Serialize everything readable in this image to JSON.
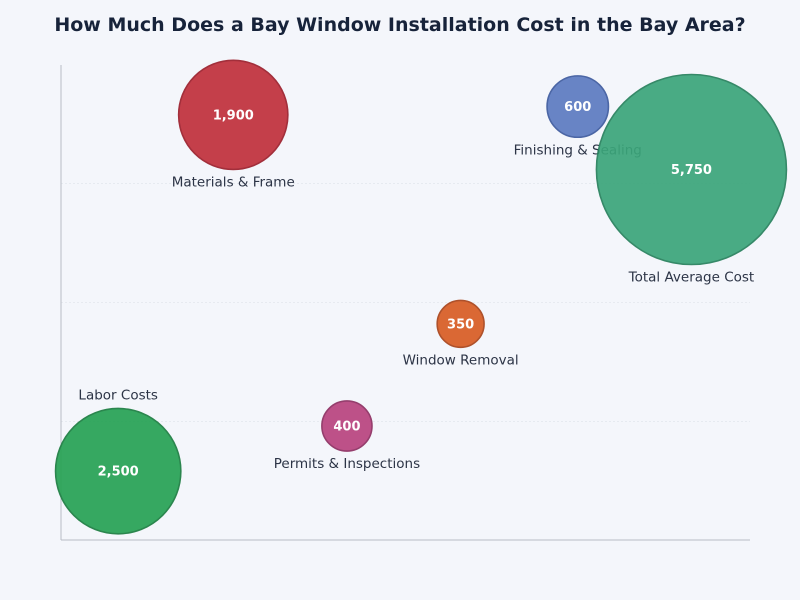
{
  "chart_data": {
    "type": "bubble",
    "title": "How Much Does a Bay Window Installation Cost in the Bay Area?",
    "xlim": [
      0,
      100
    ],
    "ylim": [
      0,
      4
    ],
    "grid": true,
    "points": [
      {
        "label": "Materials & Frame",
        "value": 1900,
        "value_label": "1,900",
        "x": 25,
        "y": 3.58,
        "color": "#c0303c",
        "stroke": "#9c1f2b",
        "label_pos": "below"
      },
      {
        "label": "Finishing & Sealing",
        "value": 600,
        "value_label": "600",
        "x": 75,
        "y": 3.65,
        "color": "#5d7bc1",
        "stroke": "#3d5a9e",
        "label_pos": "below"
      },
      {
        "label": "Total Average Cost",
        "value": 5750,
        "value_label": "5,750",
        "x": 91.5,
        "y": 3.12,
        "color": "#3ba57a",
        "stroke": "#26805c",
        "label_pos": "below"
      },
      {
        "label": "Window Removal",
        "value": 350,
        "value_label": "350",
        "x": 58,
        "y": 1.82,
        "color": "#d85d24",
        "stroke": "#a9441a",
        "label_pos": "below"
      },
      {
        "label": "Permits & Inspections",
        "value": 400,
        "value_label": "400",
        "x": 41.5,
        "y": 0.96,
        "color": "#b9447f",
        "stroke": "#8e2f61",
        "label_pos": "below"
      },
      {
        "label": "Labor Costs",
        "value": 2500,
        "value_label": "2,500",
        "x": 8.3,
        "y": 0.58,
        "color": "#26a254",
        "stroke": "#1b7d40",
        "label_pos": "above"
      }
    ]
  }
}
